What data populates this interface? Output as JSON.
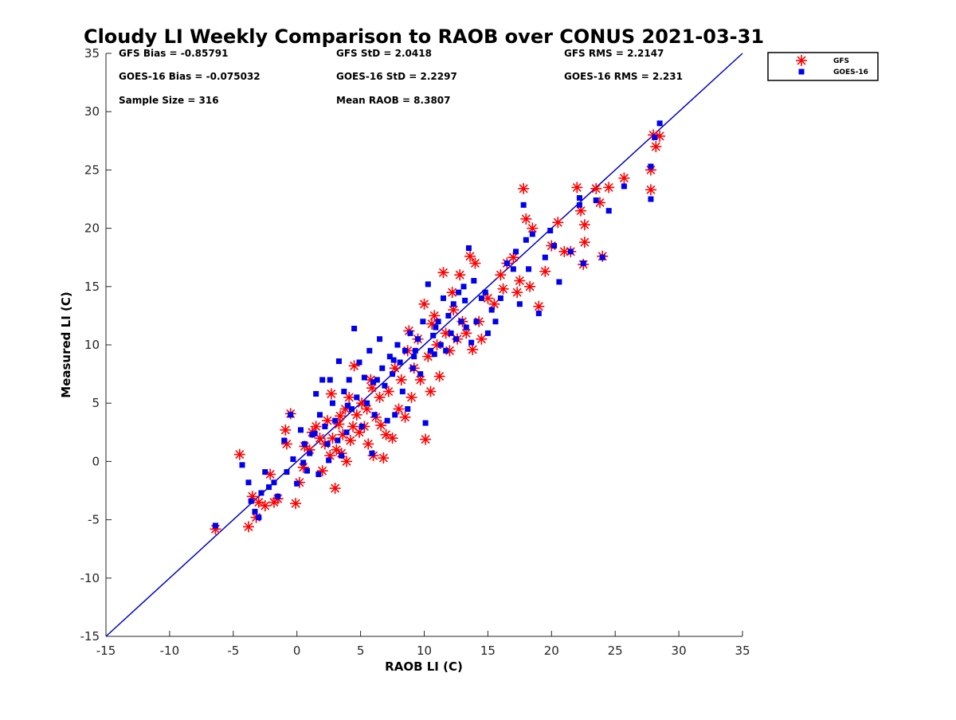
{
  "chart_data": {
    "type": "scatter",
    "title": "Cloudy LI Weekly Comparison to RAOB over CONUS 2021-03-31",
    "xlabel": "RAOB LI (C)",
    "ylabel": "Measured LI (C)",
    "xlim": [
      -15,
      35
    ],
    "ylim": [
      -15,
      35
    ],
    "xticks": [
      -15,
      -10,
      -5,
      0,
      5,
      10,
      15,
      20,
      25,
      30,
      35
    ],
    "yticks": [
      -15,
      -10,
      -5,
      0,
      5,
      10,
      15,
      20,
      25,
      30,
      35
    ],
    "grid": false,
    "legend_position": "outside top-right",
    "colors": {
      "GFS": "#ff0000",
      "GOES-16": "#0000ee",
      "reference_line": "#0000cc"
    },
    "reference_line": {
      "x": [
        -15,
        35
      ],
      "y": [
        -15,
        35
      ]
    },
    "stats": [
      "GFS Bias = -0.85791",
      "GFS StD = 2.0418",
      "GFS RMS = 2.2147",
      "GOES-16 Bias = -0.075032",
      "GOES-16 StD = 2.2297",
      "GOES-16 RMS = 2.231",
      "Sample Size = 316",
      "Mean RAOB = 8.3807"
    ],
    "series": [
      {
        "name": "GFS",
        "marker": "asterisk",
        "points": [
          [
            -6.4,
            -5.8
          ],
          [
            -4.5,
            0.6
          ],
          [
            -3.8,
            -5.6
          ],
          [
            -3.5,
            -3.0
          ],
          [
            -3.2,
            -4.8
          ],
          [
            -3.0,
            -3.5
          ],
          [
            -2.5,
            -3.8
          ],
          [
            -2.1,
            -1.1
          ],
          [
            -1.8,
            -3.5
          ],
          [
            -1.5,
            -3.2
          ],
          [
            -0.9,
            2.7
          ],
          [
            -0.8,
            1.5
          ],
          [
            -0.5,
            4.1
          ],
          [
            -0.1,
            -3.6
          ],
          [
            0.2,
            -1.8
          ],
          [
            0.5,
            -0.5
          ],
          [
            0.6,
            1.3
          ],
          [
            1.0,
            1.0
          ],
          [
            1.2,
            2.5
          ],
          [
            1.5,
            3.0
          ],
          [
            1.8,
            2.0
          ],
          [
            2.0,
            -0.8
          ],
          [
            2.2,
            1.5
          ],
          [
            2.4,
            3.5
          ],
          [
            2.6,
            0.5
          ],
          [
            2.8,
            2.0
          ],
          [
            3.0,
            -2.3
          ],
          [
            3.1,
            1.0
          ],
          [
            3.3,
            3.2
          ],
          [
            3.5,
            0.7
          ],
          [
            3.6,
            2.3
          ],
          [
            3.8,
            4.5
          ],
          [
            3.9,
            0.0
          ],
          [
            4.1,
            5.5
          ],
          [
            4.2,
            1.8
          ],
          [
            4.4,
            3.0
          ],
          [
            4.5,
            8.2
          ],
          [
            4.7,
            4.0
          ],
          [
            4.9,
            2.5
          ],
          [
            5.1,
            5.0
          ],
          [
            5.3,
            3.0
          ],
          [
            5.5,
            4.5
          ],
          [
            5.6,
            1.5
          ],
          [
            5.8,
            7.0
          ],
          [
            6.0,
            0.5
          ],
          [
            6.2,
            3.8
          ],
          [
            6.5,
            5.5
          ],
          [
            6.8,
            0.3
          ],
          [
            7.0,
            2.3
          ],
          [
            7.2,
            6.0
          ],
          [
            7.5,
            2.0
          ],
          [
            7.7,
            8.0
          ],
          [
            8.0,
            4.5
          ],
          [
            8.2,
            7.0
          ],
          [
            8.5,
            3.8
          ],
          [
            8.7,
            9.5
          ],
          [
            9.0,
            5.5
          ],
          [
            9.2,
            8.0
          ],
          [
            9.5,
            10.5
          ],
          [
            9.7,
            7.0
          ],
          [
            10.0,
            13.5
          ],
          [
            10.1,
            1.9
          ],
          [
            10.3,
            9.0
          ],
          [
            10.5,
            6.0
          ],
          [
            10.8,
            12.5
          ],
          [
            11.0,
            10.0
          ],
          [
            11.2,
            7.3
          ],
          [
            11.5,
            16.2
          ],
          [
            11.7,
            11.0
          ],
          [
            12.0,
            9.5
          ],
          [
            12.3,
            13.0
          ],
          [
            12.6,
            10.5
          ],
          [
            12.8,
            16.0
          ],
          [
            13.0,
            12.0
          ],
          [
            13.3,
            11.0
          ],
          [
            13.6,
            17.6
          ],
          [
            13.8,
            9.6
          ],
          [
            14.0,
            17.0
          ],
          [
            14.3,
            12.0
          ],
          [
            14.5,
            10.5
          ],
          [
            15.0,
            14.0
          ],
          [
            15.5,
            13.5
          ],
          [
            16.0,
            16.0
          ],
          [
            16.5,
            17.0
          ],
          [
            17.0,
            17.5
          ],
          [
            17.3,
            14.5
          ],
          [
            17.5,
            15.5
          ],
          [
            17.8,
            23.4
          ],
          [
            18.0,
            20.8
          ],
          [
            18.3,
            15.0
          ],
          [
            18.5,
            20.0
          ],
          [
            19.0,
            13.3
          ],
          [
            19.5,
            16.3
          ],
          [
            20.0,
            18.5
          ],
          [
            20.5,
            20.5
          ],
          [
            21.0,
            18.0
          ],
          [
            21.5,
            18.0
          ],
          [
            22.0,
            23.5
          ],
          [
            22.3,
            21.5
          ],
          [
            22.5,
            16.9
          ],
          [
            22.6,
            20.3
          ],
          [
            22.6,
            18.8
          ],
          [
            23.5,
            23.4
          ],
          [
            23.8,
            22.2
          ],
          [
            24.0,
            17.6
          ],
          [
            24.5,
            23.5
          ],
          [
            25.7,
            24.3
          ],
          [
            27.8,
            25.0
          ],
          [
            27.8,
            23.3
          ],
          [
            28.0,
            28.0
          ],
          [
            28.2,
            27.0
          ],
          [
            28.5,
            27.9
          ],
          [
            2.7,
            5.8
          ],
          [
            3.4,
            3.9
          ],
          [
            5.9,
            6.3
          ],
          [
            6.6,
            3.1
          ],
          [
            8.8,
            11.2
          ],
          [
            10.6,
            11.8
          ],
          [
            12.2,
            14.5
          ],
          [
            16.2,
            14.8
          ]
        ]
      },
      {
        "name": "GOES-16",
        "marker": "square",
        "points": [
          [
            -6.4,
            -5.5
          ],
          [
            -4.3,
            -0.3
          ],
          [
            -3.8,
            -1.8
          ],
          [
            -3.6,
            -3.4
          ],
          [
            -3.3,
            -4.3
          ],
          [
            -3.0,
            -4.8
          ],
          [
            -2.8,
            -2.7
          ],
          [
            -2.5,
            -0.9
          ],
          [
            -2.2,
            -2.2
          ],
          [
            -1.8,
            -1.8
          ],
          [
            -1.5,
            -3.0
          ],
          [
            -1.0,
            1.8
          ],
          [
            -0.8,
            -0.9
          ],
          [
            -0.5,
            4.0
          ],
          [
            -0.3,
            0.2
          ],
          [
            0.0,
            -1.9
          ],
          [
            0.3,
            2.7
          ],
          [
            0.5,
            -0.1
          ],
          [
            0.6,
            1.5
          ],
          [
            0.8,
            -0.8
          ],
          [
            1.0,
            0.7
          ],
          [
            1.2,
            2.3
          ],
          [
            1.5,
            5.8
          ],
          [
            1.7,
            -1.1
          ],
          [
            1.8,
            4.0
          ],
          [
            2.0,
            7.0
          ],
          [
            2.2,
            3.0
          ],
          [
            2.4,
            1.5
          ],
          [
            2.6,
            7.0
          ],
          [
            2.8,
            5.0
          ],
          [
            3.0,
            3.5
          ],
          [
            3.2,
            1.8
          ],
          [
            3.3,
            8.6
          ],
          [
            3.5,
            0.5
          ],
          [
            3.7,
            6.0
          ],
          [
            3.9,
            2.5
          ],
          [
            4.1,
            7.0
          ],
          [
            4.3,
            4.5
          ],
          [
            4.5,
            11.4
          ],
          [
            4.7,
            5.5
          ],
          [
            4.9,
            8.5
          ],
          [
            5.1,
            3.0
          ],
          [
            5.3,
            7.2
          ],
          [
            5.5,
            5.0
          ],
          [
            5.7,
            9.5
          ],
          [
            5.9,
            0.7
          ],
          [
            6.1,
            4.0
          ],
          [
            6.3,
            7.0
          ],
          [
            6.5,
            10.5
          ],
          [
            6.7,
            8.0
          ],
          [
            6.9,
            6.5
          ],
          [
            7.1,
            3.5
          ],
          [
            7.3,
            9.0
          ],
          [
            7.5,
            7.5
          ],
          [
            7.7,
            4.0
          ],
          [
            7.9,
            10.0
          ],
          [
            8.1,
            8.5
          ],
          [
            8.3,
            6.0
          ],
          [
            8.5,
            9.5
          ],
          [
            8.7,
            4.5
          ],
          [
            8.9,
            11.0
          ],
          [
            9.1,
            8.0
          ],
          [
            9.3,
            9.5
          ],
          [
            9.5,
            10.5
          ],
          [
            9.7,
            7.5
          ],
          [
            9.9,
            12.0
          ],
          [
            10.1,
            3.3
          ],
          [
            10.3,
            15.2
          ],
          [
            10.5,
            9.5
          ],
          [
            10.7,
            10.8
          ],
          [
            10.9,
            11.5
          ],
          [
            11.1,
            12.0
          ],
          [
            11.3,
            10.0
          ],
          [
            11.5,
            14.0
          ],
          [
            11.7,
            9.5
          ],
          [
            11.9,
            12.5
          ],
          [
            12.1,
            11.0
          ],
          [
            12.3,
            13.5
          ],
          [
            12.5,
            10.5
          ],
          [
            12.7,
            14.5
          ],
          [
            12.9,
            12.0
          ],
          [
            13.1,
            15.0
          ],
          [
            13.3,
            11.5
          ],
          [
            13.5,
            18.3
          ],
          [
            13.7,
            10.2
          ],
          [
            13.9,
            15.5
          ],
          [
            14.1,
            12.0
          ],
          [
            14.5,
            14.0
          ],
          [
            15.0,
            11.0
          ],
          [
            15.3,
            13.0
          ],
          [
            15.6,
            12.0
          ],
          [
            16.0,
            14.0
          ],
          [
            16.5,
            17.0
          ],
          [
            17.0,
            16.5
          ],
          [
            17.2,
            18.0
          ],
          [
            17.5,
            13.5
          ],
          [
            17.8,
            22.0
          ],
          [
            18.0,
            19.0
          ],
          [
            18.2,
            16.5
          ],
          [
            18.5,
            19.5
          ],
          [
            19.0,
            12.7
          ],
          [
            19.5,
            17.5
          ],
          [
            19.9,
            19.8
          ],
          [
            20.2,
            18.5
          ],
          [
            20.6,
            15.4
          ],
          [
            21.5,
            18.0
          ],
          [
            22.2,
            22.6
          ],
          [
            22.2,
            22.0
          ],
          [
            22.5,
            17.0
          ],
          [
            23.5,
            22.4
          ],
          [
            24.0,
            17.5
          ],
          [
            24.5,
            21.5
          ],
          [
            25.7,
            23.6
          ],
          [
            27.8,
            22.5
          ],
          [
            27.8,
            25.3
          ],
          [
            28.1,
            27.8
          ],
          [
            28.5,
            29.0
          ],
          [
            1.4,
            2.4
          ],
          [
            2.5,
            0.1
          ],
          [
            4.0,
            4.8
          ],
          [
            6.0,
            6.8
          ],
          [
            7.6,
            8.7
          ],
          [
            9.2,
            9.0
          ],
          [
            10.8,
            9.2
          ],
          [
            13.2,
            13.8
          ],
          [
            14.8,
            14.5
          ]
        ]
      }
    ]
  }
}
